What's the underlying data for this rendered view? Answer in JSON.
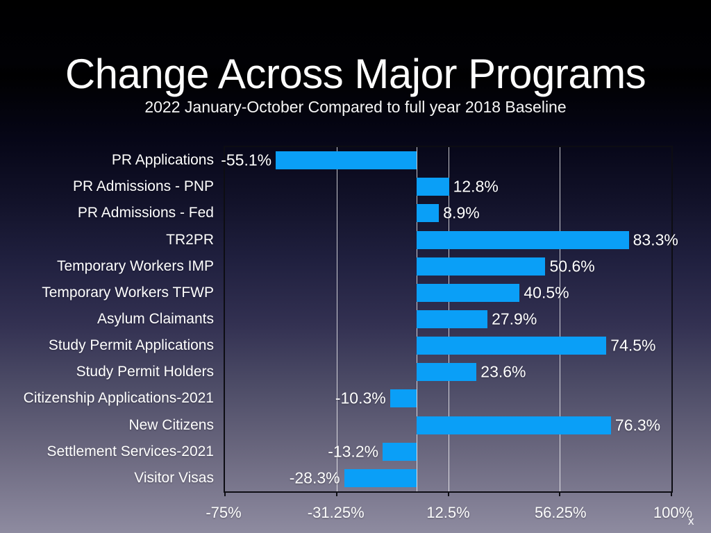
{
  "title": "Change Across Major Programs",
  "subtitle": "2022 January-October Compared to full year 2018 Baseline",
  "colors": {
    "bar": "#0a9ff7",
    "text": "#ffffff",
    "gridline": "rgba(255,255,255,0.78)",
    "plot_border": "#0d0d13",
    "background_top": "#000000",
    "background_bottom": "#8e8ba0"
  },
  "chart_data": {
    "type": "bar",
    "orientation": "horizontal",
    "title": "Change Across Major Programs",
    "subtitle": "2022 January-October Compared to full year 2018 Baseline",
    "categories": [
      "PR Applications",
      "PR Admissions - PNP",
      "PR Admissions - Fed",
      "TR2PR",
      "Temporary Workers IMP",
      "Temporary Workers TFWP",
      "Asylum Claimants",
      "Study Permit Applications",
      "Study Permit Holders",
      "Citizenship Applications-2021",
      "New Citizens",
      "Settlement Services-2021",
      "Visitor Visas"
    ],
    "values": [
      -55.1,
      12.8,
      8.9,
      83.3,
      50.6,
      40.5,
      27.9,
      74.5,
      23.6,
      -10.3,
      76.3,
      -13.2,
      -28.3
    ],
    "value_labels": [
      "-55.1%",
      "12.8%",
      "8.9%",
      "83.3%",
      "50.6%",
      "40.5%",
      "27.9%",
      "74.5%",
      "23.6%",
      "-10.3%",
      "76.3%",
      "-13.2%",
      "-28.3%"
    ],
    "xlim": [
      -75,
      100
    ],
    "x_ticks": [
      {
        "label": "-75%",
        "value": -75
      },
      {
        "label": "-31.25%",
        "value": -31.25
      },
      {
        "label": "12.5%",
        "value": 12.5
      },
      {
        "label": "56.25%",
        "value": 56.25
      },
      {
        "label": "100%",
        "value": 100
      }
    ],
    "interior_gridline_values": [
      -31.25,
      0,
      12.5,
      56.25
    ],
    "x_axis_title": "x",
    "grid": "vertical",
    "legend": "none"
  }
}
